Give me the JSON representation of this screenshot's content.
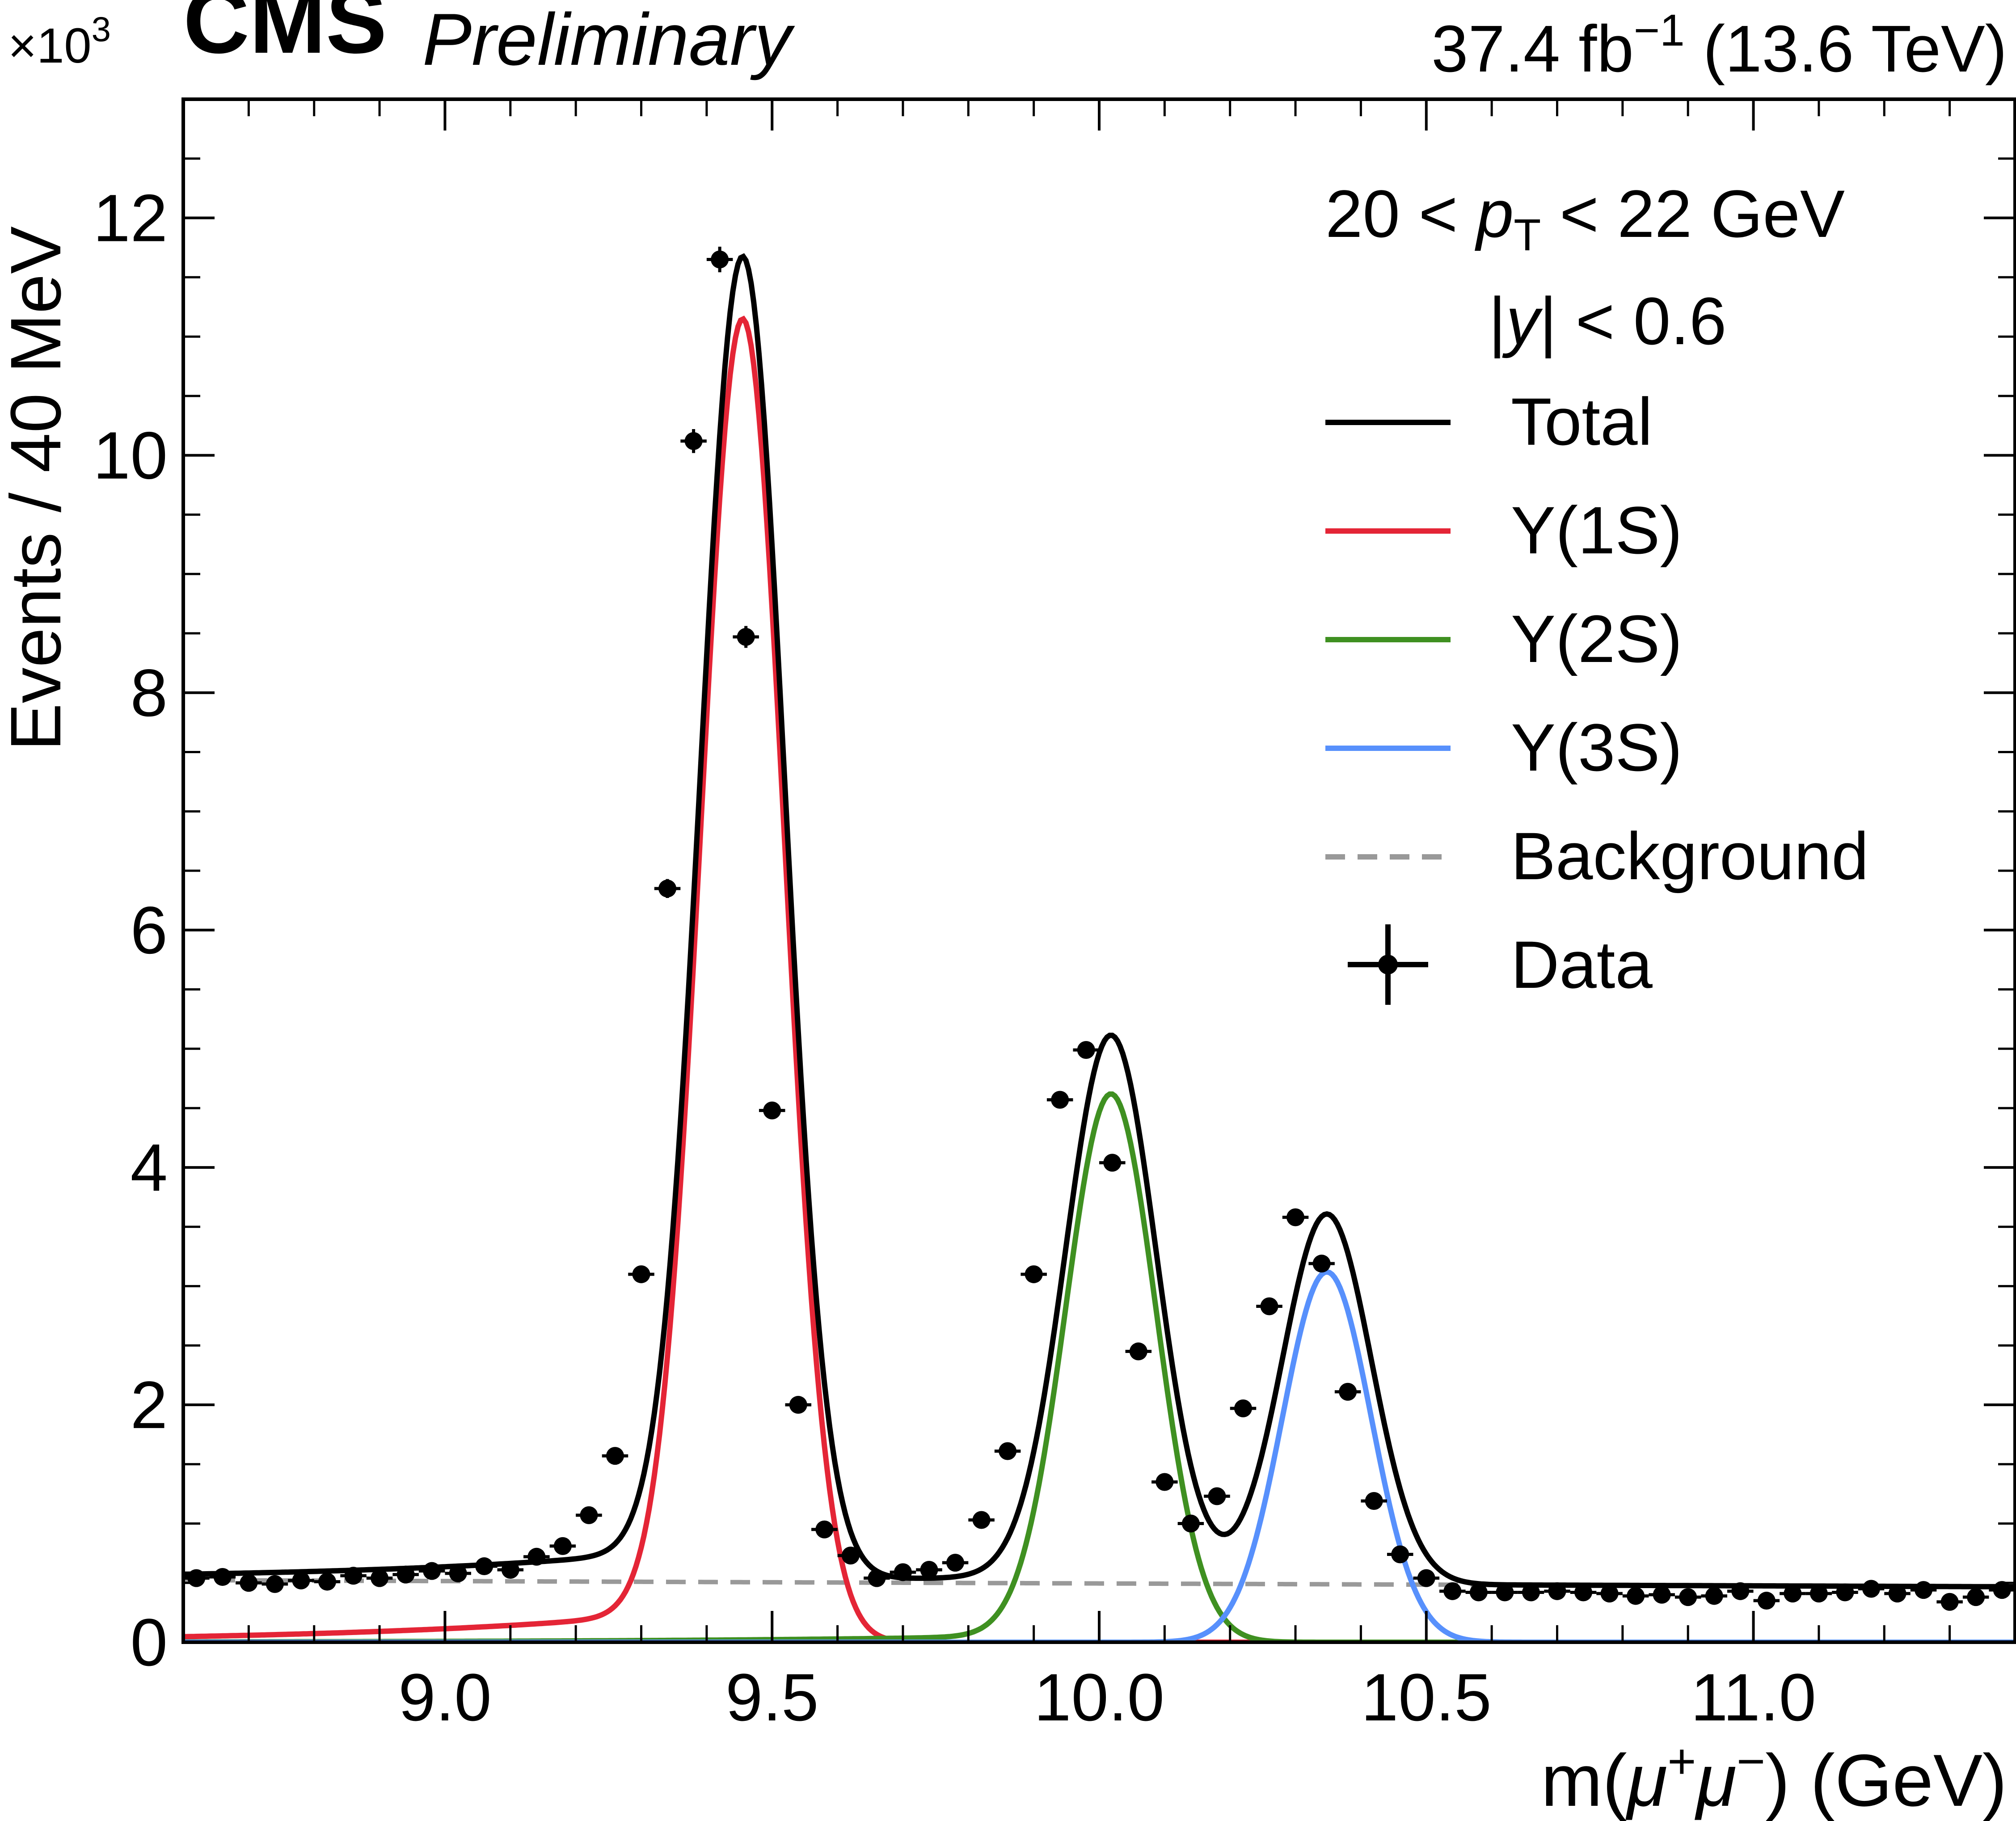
{
  "header": {
    "experiment": "CMS",
    "status": "Preliminary",
    "luminosity": "37.4 fb",
    "lumi_exp": "−1",
    "energy": "(13.6 TeV)"
  },
  "chart_data": {
    "type": "line",
    "xlabel_pre": "m(",
    "xlabel_mu1": "μ",
    "xlabel_sup1": "+",
    "xlabel_mu2": "μ",
    "xlabel_sup2": "−",
    "xlabel_post": ") (GeV)",
    "ylabel": "Events / 40 MeV",
    "y_multiplier": "×10",
    "y_multiplier_exp": "3",
    "xlim": [
      8.6,
      11.4
    ],
    "ylim": [
      0,
      13.0
    ],
    "x_ticks": [
      9.0,
      9.5,
      10.0,
      10.5,
      11.0
    ],
    "x_tick_labels": [
      "9.0",
      "9.5",
      "10.0",
      "10.5",
      "11.0"
    ],
    "y_ticks": [
      0,
      2,
      4,
      6,
      8,
      10,
      12
    ],
    "y_tick_labels": [
      "0",
      "2",
      "4",
      "6",
      "8",
      "10",
      "12"
    ],
    "grid": false,
    "legend_position": "top-right",
    "annotations": {
      "pt_pre": "20 < ",
      "pt_p": "p",
      "pt_sub": "T",
      "pt_post": " < 22 GeV",
      "y_pre": "|",
      "y_var": "y",
      "y_post": "| < 0.6"
    },
    "fit_model": {
      "background": {
        "a": 0.495,
        "b": -0.02,
        "x0": 10.0
      },
      "peaks": [
        {
          "mean": 9.455,
          "sigma": 0.064,
          "amp": 11.15,
          "tail": 0.028
        },
        {
          "mean": 10.018,
          "sigma": 0.069,
          "amp": 4.62,
          "tail": 0.015
        },
        {
          "mean": 10.348,
          "sigma": 0.068,
          "amp": 3.12,
          "tail": 0.0
        }
      ]
    },
    "series": [
      {
        "name": "Total",
        "color": "#000000",
        "style": "solid"
      },
      {
        "name": "Υ(1S)",
        "color": "#e42536",
        "style": "solid"
      },
      {
        "name": "Υ(2S)",
        "color": "#3f9021",
        "style": "solid"
      },
      {
        "name": "Υ(3S)",
        "color": "#5790fc",
        "style": "solid"
      },
      {
        "name": "Background",
        "color": "#999999",
        "style": "dashed"
      }
    ],
    "data_series": {
      "name": "Data",
      "color": "#000000",
      "x": [
        8.62,
        8.66,
        8.7,
        8.74,
        8.78,
        8.82,
        8.86,
        8.9,
        8.94,
        8.98,
        9.02,
        9.06,
        9.1,
        9.14,
        9.18,
        9.22,
        9.26,
        9.3,
        9.34,
        9.38,
        9.42,
        9.46,
        9.5,
        9.54,
        9.58,
        9.62,
        9.66,
        9.7,
        9.74,
        9.78,
        9.82,
        9.86,
        9.9,
        9.94,
        9.98,
        10.02,
        10.06,
        10.1,
        10.14,
        10.18,
        10.22,
        10.26,
        10.3,
        10.34,
        10.38,
        10.42,
        10.46,
        10.5,
        10.54,
        10.58,
        10.62,
        10.66,
        10.7,
        10.74,
        10.78,
        10.82,
        10.86,
        10.9,
        10.94,
        10.98,
        11.02,
        11.06,
        11.1,
        11.14,
        11.18,
        11.22,
        11.26,
        11.3,
        11.34,
        11.38
      ],
      "y": [
        0.54,
        0.55,
        0.5,
        0.49,
        0.52,
        0.51,
        0.56,
        0.54,
        0.57,
        0.6,
        0.58,
        0.64,
        0.61,
        0.72,
        0.81,
        1.07,
        1.57,
        3.1,
        6.35,
        10.12,
        11.65,
        8.47,
        4.48,
        2.0,
        0.95,
        0.73,
        0.54,
        0.59,
        0.61,
        0.67,
        1.03,
        1.61,
        3.1,
        4.57,
        4.99,
        4.04,
        2.45,
        1.35,
        1.0,
        1.23,
        1.97,
        2.83,
        3.58,
        3.19,
        2.11,
        1.19,
        0.74,
        0.54,
        0.43,
        0.42,
        0.42,
        0.42,
        0.43,
        0.42,
        0.41,
        0.39,
        0.4,
        0.38,
        0.39,
        0.43,
        0.35,
        0.41,
        0.41,
        0.42,
        0.45,
        0.41,
        0.44,
        0.34,
        0.38,
        0.44
      ]
    }
  }
}
